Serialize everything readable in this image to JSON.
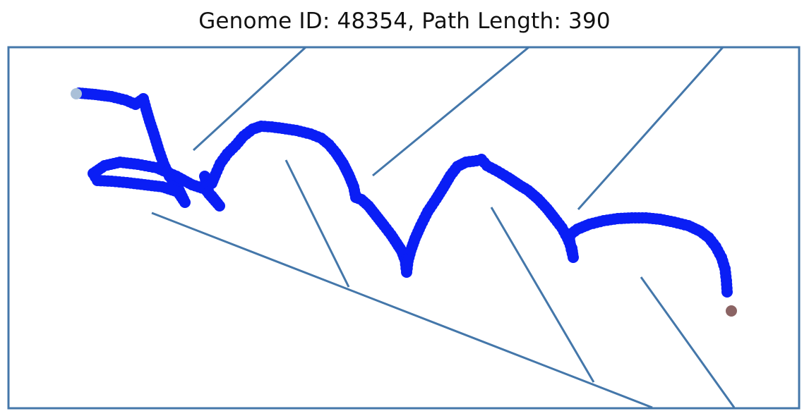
{
  "title": "Genome ID: 48354, Path Length: 390",
  "colors": {
    "wall": "#4477aa",
    "path": "#0a1ef5",
    "start_point": "#aac0d8",
    "end_point": "#8b6464",
    "background": "#ffffff"
  }
}
